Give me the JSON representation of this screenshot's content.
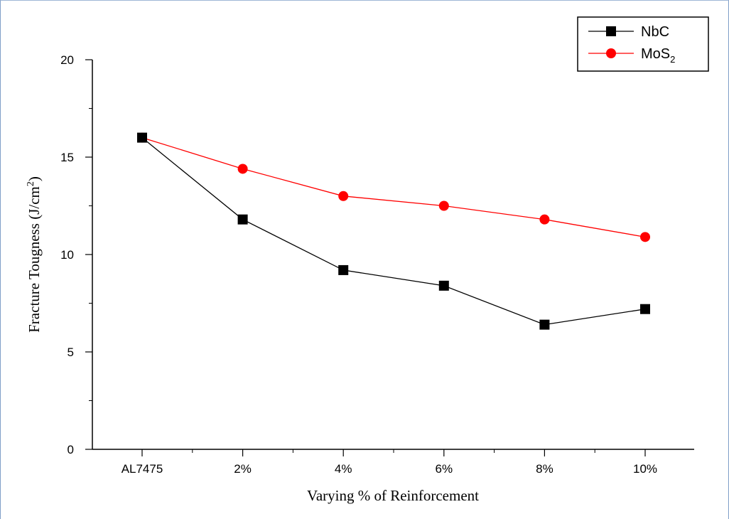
{
  "chart_data": {
    "type": "line",
    "categories": [
      "AL7475",
      "2%",
      "4%",
      "6%",
      "8%",
      "10%"
    ],
    "series": [
      {
        "name": "NbC",
        "values": [
          16.0,
          11.8,
          9.2,
          8.4,
          6.4,
          7.2
        ],
        "color": "#000000",
        "marker": "square"
      },
      {
        "name": "MoS",
        "name_subscript": "2",
        "values": [
          16.0,
          14.4,
          13.0,
          12.5,
          11.8,
          10.9
        ],
        "color": "#ff0000",
        "marker": "circle"
      }
    ],
    "xlabel": "Varying % of Reinforcement",
    "ylabel": "Fracture Tougness (J/cm",
    "ylabel_superscript": "2",
    "ylabel_suffix": ")",
    "ylim": [
      0,
      20
    ],
    "yticks": [
      "0",
      "5",
      "10",
      "15",
      "20"
    ],
    "grid": false,
    "legend_position": "top-right"
  }
}
